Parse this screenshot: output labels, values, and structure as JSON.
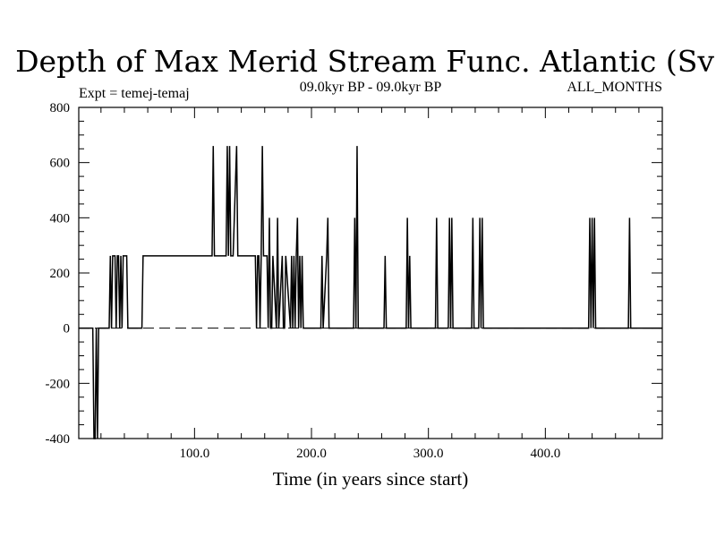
{
  "chart_data": {
    "type": "line",
    "title": "Depth of Max Merid Stream Func. Atlantic (Sv)",
    "subtitle_left": "Expt = temej-temaj",
    "subtitle_center": "09.0kyr BP - 09.0kyr BP",
    "subtitle_right": "ALL_MONTHS",
    "xlabel": "Time (in years since start)",
    "ylabel": "",
    "xlim": [
      1,
      500
    ],
    "ylim": [
      -400,
      800
    ],
    "x_ticks": [
      100,
      200,
      300,
      400
    ],
    "x_tick_labels": [
      "100.0",
      "200.0",
      "300.0",
      "400.0"
    ],
    "y_ticks": [
      -400,
      -200,
      0,
      200,
      400,
      600,
      800
    ],
    "y_tick_labels": [
      "-400",
      "-200",
      "0",
      "200",
      "400",
      "600",
      "800"
    ],
    "grid": false,
    "legend": "none",
    "zero_reference_line": {
      "y": 0,
      "style": "dashed"
    },
    "series": [
      {
        "x": [
          1,
          13,
          14,
          15,
          16,
          17,
          18,
          19,
          27,
          28,
          29,
          30,
          31,
          32,
          33,
          34,
          35,
          36,
          37,
          38,
          39,
          40,
          41,
          42,
          43,
          55,
          56,
          114,
          115,
          116,
          117,
          127,
          128,
          129,
          130,
          131,
          132,
          133,
          136,
          137,
          138,
          152,
          153,
          154,
          155,
          156,
          157,
          158,
          159,
          160,
          161,
          162,
          163,
          164,
          165,
          166,
          167,
          170,
          171,
          172,
          175,
          176,
          177,
          178,
          182,
          183,
          184,
          185,
          186,
          187,
          188,
          189,
          190,
          191,
          192,
          193,
          208,
          209,
          210,
          213,
          214,
          215,
          236,
          237,
          238,
          239,
          240,
          241,
          242,
          262,
          263,
          264,
          281,
          282,
          283,
          284,
          285,
          306,
          307,
          308,
          317,
          318,
          319,
          320,
          321,
          322,
          337,
          338,
          339,
          343,
          344,
          345,
          346,
          347,
          437,
          438,
          439,
          440,
          441,
          442,
          443,
          444,
          471,
          472,
          473,
          500
        ],
        "y": [
          0,
          0,
          -400,
          -400,
          0,
          -400,
          0,
          0,
          0,
          262,
          0,
          262,
          262,
          262,
          0,
          262,
          262,
          0,
          262,
          0,
          262,
          262,
          262,
          262,
          0,
          0,
          262,
          262,
          262,
          660,
          262,
          262,
          660,
          262,
          660,
          262,
          262,
          262,
          660,
          262,
          262,
          262,
          0,
          262,
          262,
          0,
          262,
          660,
          262,
          262,
          262,
          262,
          0,
          400,
          0,
          0,
          262,
          0,
          400,
          0,
          262,
          0,
          0,
          262,
          0,
          262,
          0,
          262,
          0,
          262,
          400,
          0,
          262,
          0,
          262,
          0,
          0,
          262,
          0,
          262,
          400,
          0,
          0,
          400,
          0,
          660,
          0,
          0,
          0,
          0,
          262,
          0,
          0,
          400,
          0,
          262,
          0,
          0,
          400,
          0,
          0,
          400,
          0,
          400,
          0,
          0,
          0,
          400,
          0,
          0,
          400,
          0,
          400,
          0,
          0,
          400,
          0,
          400,
          0,
          400,
          0,
          0,
          0,
          400,
          0,
          0
        ]
      }
    ]
  }
}
